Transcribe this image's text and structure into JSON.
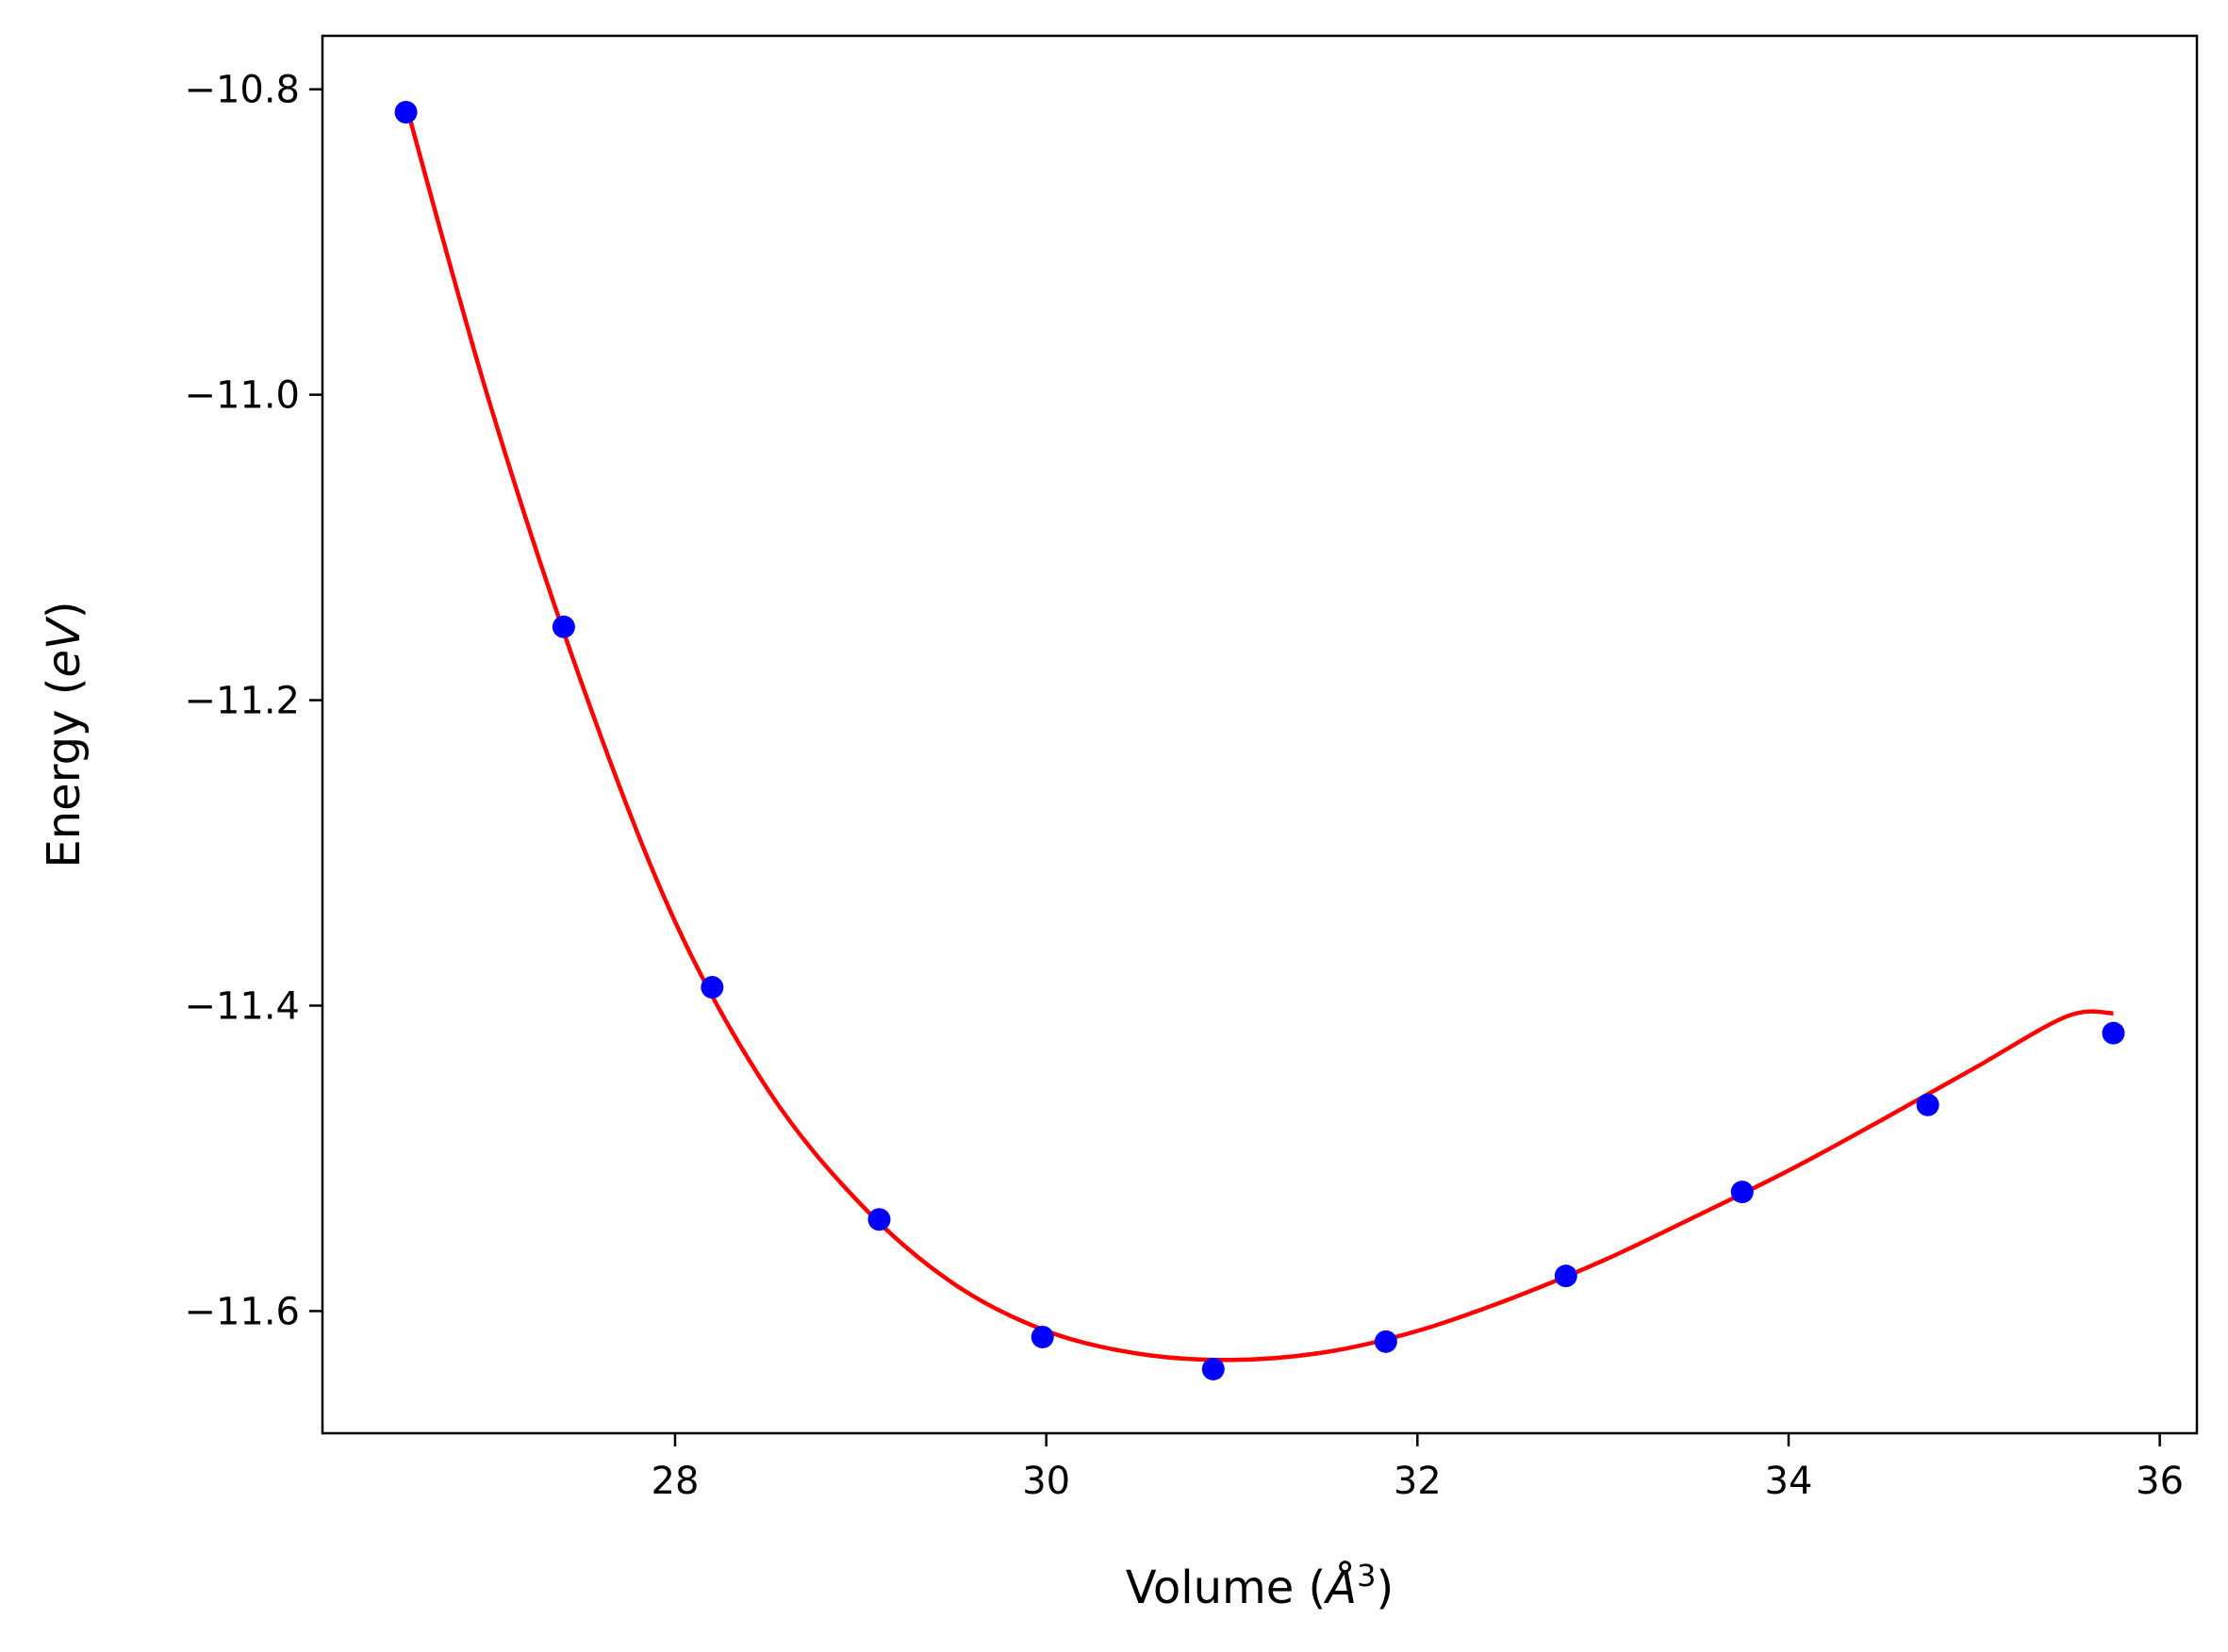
{
  "chart_data": {
    "type": "scatter",
    "xlabel": "Volume (Å³)",
    "xlabel_parts": {
      "prefix": "Volume (",
      "symbol": "Å",
      "exponent": "3",
      "suffix": ")"
    },
    "ylabel": "Energy (eV)",
    "ylabel_parts": {
      "prefix": "Energy (",
      "unit": "eV",
      "suffix": ")"
    },
    "xlim": [
      26.1,
      36.2
    ],
    "ylim": [
      -11.68,
      -10.765
    ],
    "x_ticks": [
      28,
      30,
      32,
      34,
      36
    ],
    "x_tick_labels": [
      "28",
      "30",
      "32",
      "34",
      "36"
    ],
    "y_ticks": [
      -10.8,
      -11.0,
      -11.2,
      -11.4,
      -11.6
    ],
    "y_tick_labels": [
      "−10.8",
      "−11.0",
      "−11.2",
      "−11.4",
      "−11.6"
    ],
    "grid": false,
    "series": [
      {
        "kind": "points",
        "color": "#0000ff",
        "x": [
          26.55,
          27.4,
          28.2,
          29.1,
          29.98,
          30.9,
          31.83,
          32.8,
          33.75,
          34.75,
          35.75
        ],
        "y": [
          -10.815,
          -11.152,
          -11.388,
          -11.54,
          -11.617,
          -11.638,
          -11.62,
          -11.577,
          -11.522,
          -11.465,
          -11.418
        ]
      },
      {
        "kind": "fit-curve",
        "color": "#ff0000",
        "x": [
          26.55,
          27.0,
          27.5,
          28.0,
          28.5,
          29.0,
          29.5,
          30.0,
          30.5,
          31.0,
          31.5,
          32.0,
          32.5,
          33.0,
          33.5,
          34.0,
          34.5,
          35.0,
          35.5,
          35.75
        ],
        "y": [
          -10.81,
          -11.005,
          -11.19,
          -11.345,
          -11.455,
          -11.53,
          -11.582,
          -11.613,
          -11.628,
          -11.632,
          -11.627,
          -11.613,
          -11.592,
          -11.567,
          -11.538,
          -11.508,
          -11.475,
          -11.441,
          -11.407,
          -11.405
        ]
      }
    ]
  }
}
